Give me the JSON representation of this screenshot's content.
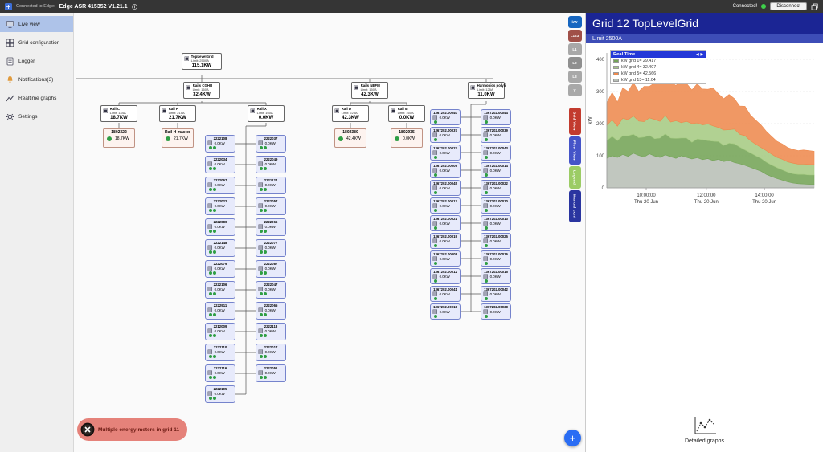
{
  "topbar": {
    "connected_to": "Connected to Edge:",
    "device": "Edge ASR 415352  V1.21.1",
    "status": "Connected!",
    "disconnect": "Disconnect"
  },
  "sidebar": {
    "items": [
      {
        "label": "Live view",
        "icon": "monitor-icon",
        "active": true
      },
      {
        "label": "Grid configuration",
        "icon": "grid-icon",
        "active": false
      },
      {
        "label": "Logger",
        "icon": "logger-icon",
        "active": false
      },
      {
        "label": "Notifications(3)",
        "icon": "bell-icon",
        "active": false
      },
      {
        "label": "Realtime graphs",
        "icon": "graph-icon",
        "active": false
      },
      {
        "label": "Settings",
        "icon": "gear-icon",
        "active": false
      }
    ]
  },
  "view_buttons": [
    {
      "label": "kW",
      "color": "#1666c0",
      "vertical": false
    },
    {
      "label": "L123",
      "color": "#a05048",
      "vertical": false
    },
    {
      "label": "L1",
      "color": "#a8a8a8",
      "vertical": false
    },
    {
      "label": "L2",
      "color": "#8f8f8f",
      "vertical": false
    },
    {
      "label": "L3",
      "color": "#a8a8a8",
      "vertical": false
    },
    {
      "label": "V",
      "color": "#a8a8a8",
      "vertical": false
    },
    {
      "label": "Grid View",
      "color": "#c23b2e",
      "vertical": true
    },
    {
      "label": "Flow View",
      "color": "#4554c8",
      "vertical": true
    },
    {
      "label": "Legend",
      "color": "#9ccc65",
      "vertical": true
    },
    {
      "label": "Manual cont",
      "color": "#2a35a0",
      "vertical": true
    }
  ],
  "icons": {
    "device_glyph": "▣",
    "meter_glyph": "▤"
  },
  "tree": {
    "root": {
      "name": "TopLevelGrid",
      "limit": "Limit: 2500A",
      "value": "115.1KW"
    },
    "groups": [
      {
        "name": "Rails CGHR",
        "limit": "Limit: 160A",
        "value": "32.4KW"
      },
      {
        "name": "Rails NEFM",
        "limit": "Limit: 150A",
        "value": "42.3KW"
      },
      {
        "name": "Harmonics polyline",
        "limit": "Limit: 125A",
        "value": "11.0KW"
      }
    ],
    "rails": [
      {
        "name": "Rail C",
        "limit": "Limit: 144A",
        "value": "18.7KW"
      },
      {
        "name": "Rail H",
        "limit": "Limit: 215A",
        "value": "21.7KW"
      },
      {
        "name": "Rail X",
        "limit": "Limit: 160A",
        "value": "0.0KW"
      },
      {
        "name": "Rail D",
        "limit": "Limit: 225A",
        "value": "42.3KW"
      },
      {
        "name": "Rail M",
        "limit": "Limit: 160A",
        "value": "0.0KW"
      }
    ],
    "big_meters": [
      {
        "id": "1802322",
        "value": "18.7KW"
      },
      {
        "id": "Rail H master",
        "value": "21.7KW"
      },
      {
        "id": "1802380",
        "value": "42.4KW"
      },
      {
        "id": "1802935",
        "value": "0.0KW"
      }
    ],
    "meter_value": "0.0KW",
    "col_a": [
      "2222108",
      "2222034",
      "2222067",
      "2222022",
      "2222080",
      "2222148",
      "2222079",
      "2222106",
      "2222911",
      "2212009",
      "2222110",
      "2222116",
      "2222105"
    ],
    "col_b": [
      "2222037",
      "2222049",
      "2221124",
      "2222057",
      "2222066",
      "2222077",
      "2222087",
      "2222047",
      "2222065",
      "2222113",
      "2222017",
      "2222051"
    ],
    "col_c": [
      "1367202.00040",
      "1367202.00037",
      "1367202.00027",
      "1367202.00009",
      "1367202.00045",
      "1367202.00017",
      "1367202.00021",
      "1367202.00019",
      "1367202.00008",
      "1367202.00012",
      "1367202.00041",
      "1367202.00018"
    ],
    "col_d": [
      "1367202.00044",
      "1367202.00039",
      "1367202.00043",
      "1367202.00014",
      "1367202.00022",
      "1367202.00010",
      "1367202.00013",
      "1367202.00025",
      "1367202.00016",
      "1367202.00015",
      "1367202.00042",
      "1367202.00038"
    ]
  },
  "panel": {
    "title": "Grid 12 TopLevelGrid",
    "limit": "Limit 2500A",
    "detailed_graphs": "Detailed graphs"
  },
  "toast": {
    "message": "Multiple energy meters in grid 11"
  },
  "fab": {
    "glyph": "+"
  },
  "chart_data": {
    "type": "area",
    "legend_title": "Real Time",
    "nav_left": "◀",
    "nav_right": "▶",
    "ylabel": "kW",
    "ylim": [
      0,
      420
    ],
    "yticks": [
      0,
      100,
      200,
      300,
      400
    ],
    "xticks": [
      {
        "pos": 0.19,
        "time": "10:00:00",
        "date": "Thu 20 Jun"
      },
      {
        "pos": 0.48,
        "time": "12:00:00",
        "date": "Thu 20 Jun"
      },
      {
        "pos": 0.76,
        "time": "14:00:00",
        "date": "Thu 20 Jun"
      }
    ],
    "legend_order": [
      1,
      2,
      3,
      0
    ],
    "series": [
      {
        "label": "kW grid 13= 11.04",
        "color": "#b8bfb6",
        "values": [
          92,
          100,
          95,
          104,
          98,
          108,
          101,
          96,
          106,
          99,
          95,
          103,
          97,
          92,
          100,
          95,
          90,
          94,
          88,
          91,
          85,
          89,
          82,
          85,
          79,
          75,
          70,
          64,
          58,
          52,
          42,
          35,
          29,
          24,
          19,
          15,
          13,
          12,
          11,
          11
        ]
      },
      {
        "label": "kW grid 1= 29.417",
        "color": "#74a457",
        "values": [
          55,
          60,
          52,
          58,
          64,
          59,
          55,
          62,
          57,
          54,
          60,
          65,
          58,
          62,
          55,
          60,
          52,
          58,
          62,
          56,
          60,
          55,
          50,
          54,
          58,
          52,
          48,
          45,
          42,
          40,
          38,
          36,
          34,
          32,
          30,
          29,
          29,
          30,
          29,
          29
        ]
      },
      {
        "label": "kW grid 4= 32.407",
        "color": "#a6cb83",
        "values": [
          48,
          52,
          45,
          55,
          50,
          57,
          52,
          48,
          55,
          60,
          52,
          58,
          50,
          55,
          48,
          52,
          58,
          50,
          46,
          52,
          48,
          44,
          48,
          42,
          46,
          40,
          44,
          38,
          36,
          34,
          36,
          34,
          32,
          33,
          32,
          33,
          32,
          32,
          33,
          32
        ]
      },
      {
        "label": "kW grid 5= 42.566",
        "color": "#ee8a4e",
        "values": [
          70,
          85,
          75,
          95,
          88,
          104,
          92,
          110,
          98,
          114,
          120,
          105,
          124,
          110,
          130,
          118,
          105,
          122,
          112,
          108,
          118,
          105,
          98,
          110,
          95,
          88,
          92,
          80,
          75,
          70,
          60,
          55,
          50,
          48,
          45,
          43,
          42,
          44,
          43,
          42
        ]
      }
    ]
  }
}
